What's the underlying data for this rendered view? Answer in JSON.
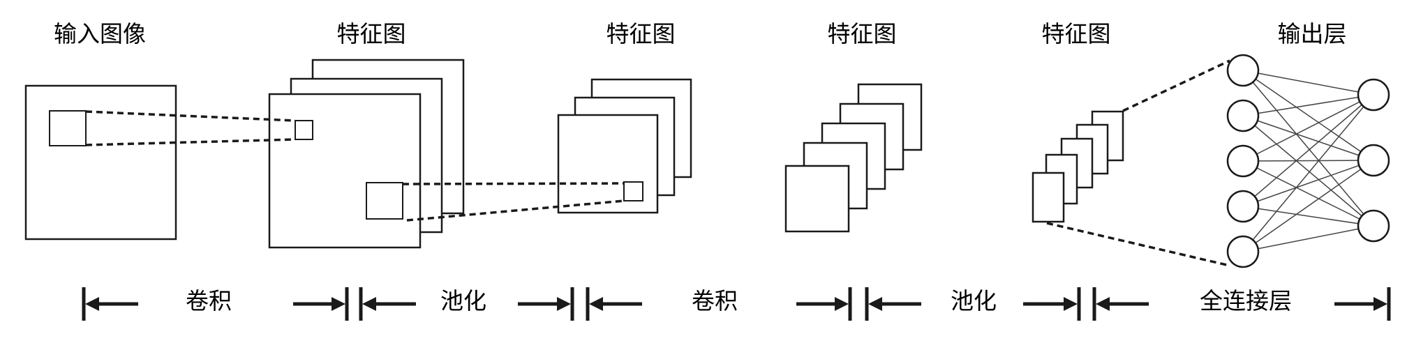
{
  "stage_labels": {
    "input_image": "输入图像",
    "feature_map_1": "特征图",
    "feature_map_2": "特征图",
    "feature_map_3": "特征图",
    "feature_map_4": "特征图",
    "output_layer": "输出层"
  },
  "phases": {
    "conv_1": "卷积",
    "pool_1": "池化",
    "conv_2": "卷积",
    "pool_2": "池化",
    "fully_connected": "全连接层"
  },
  "colors": {
    "stroke": "#1a1a1a",
    "network_lines": "#444444",
    "background": "#ffffff"
  },
  "fully_connected": {
    "input_nodes": 5,
    "output_nodes": 3
  }
}
